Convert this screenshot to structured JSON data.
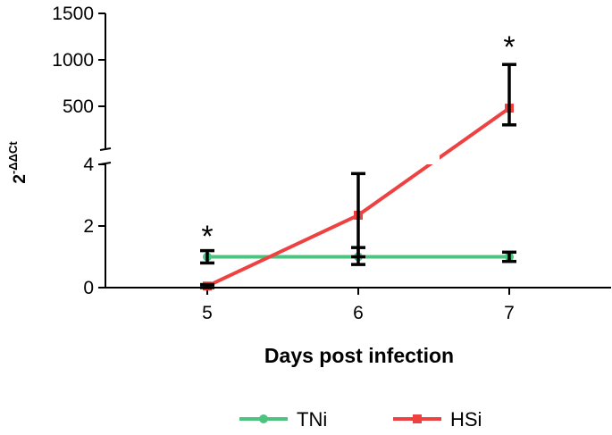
{
  "chart_data": {
    "type": "line",
    "xlabel": "Days post infection",
    "ylabel": {
      "base": "2",
      "exponent": "-ΔΔCt"
    },
    "x": [
      5,
      6,
      7
    ],
    "x_tick_labels": [
      "5",
      "6",
      "7"
    ],
    "y_axis_broken": true,
    "y_lower_range": [
      0,
      4
    ],
    "y_lower_ticks": [
      "0",
      "2",
      "4"
    ],
    "y_upper_ticks": [
      "500",
      "1000",
      "1500"
    ],
    "grid": false,
    "legend_position": "bottom",
    "series": [
      {
        "name": "TNi",
        "color": "#4cc37e",
        "marker": "circle",
        "values": [
          1.0,
          1.0,
          1.0
        ],
        "error_low": [
          0.8,
          0.75,
          0.85
        ],
        "error_high": [
          1.2,
          1.3,
          1.15
        ]
      },
      {
        "name": "HSi",
        "color": "#ee4242",
        "marker": "square",
        "values": [
          0.05,
          2.35,
          480
        ],
        "error_low": [
          0.0,
          1.0,
          300
        ],
        "error_high": [
          0.1,
          3.7,
          950
        ]
      }
    ],
    "annotations": [
      {
        "text": "*",
        "x": 5
      },
      {
        "text": "*",
        "x": 7
      }
    ]
  }
}
